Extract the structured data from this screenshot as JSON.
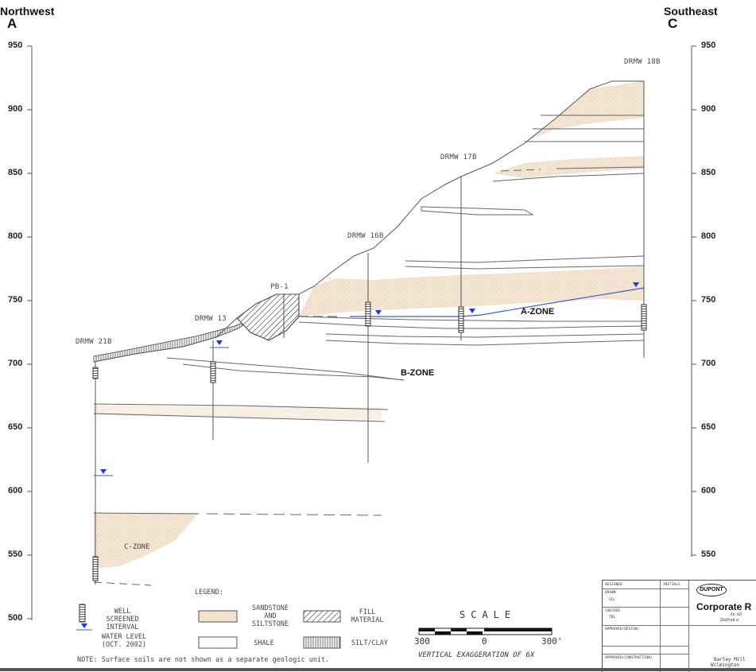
{
  "header": {
    "left_direction": "Northwest",
    "left_letter": "A",
    "right_direction": "Southeast",
    "right_letter": "C"
  },
  "left_ticks": [
    "950",
    "900",
    "850",
    "800",
    "750",
    "700",
    "650",
    "600",
    "550",
    "500"
  ],
  "right_ticks": [
    "950",
    "900",
    "850",
    "800",
    "750",
    "700",
    "650",
    "600",
    "550"
  ],
  "wells": [
    {
      "id": "DRMW 21B"
    },
    {
      "id": "DRMW 13"
    },
    {
      "id": "PB-1"
    },
    {
      "id": "DRMW 16B"
    },
    {
      "id": "DRMW 17B"
    },
    {
      "id": "DRMW 18B"
    }
  ],
  "zones": {
    "a": "A-ZONE",
    "b": "B-ZONE",
    "c": "C-ZONE"
  },
  "legend": {
    "title": "LEGEND:",
    "well_screen": "WELL\nSCREENED\nINTERVAL",
    "water_level": "WATER LEVEL\n(OCT. 2002)",
    "sandstone": "SANDSTONE\nAND\nSILTSTONE",
    "shale": "SHALE",
    "fill": "FILL\nMATERIAL",
    "siltclay": "SILT/CLAY",
    "note": "NOTE: Surface soils are not shown as a separate geologic unit."
  },
  "scale": {
    "title": "SCALE",
    "left": "300",
    "mid": "0",
    "right": "300'",
    "vex": "VERTICAL EXAGGERATION OF 6X"
  },
  "titleblock": {
    "designed": "DESIGNED",
    "initials": "INITIALS",
    "drawn": "DRAWN",
    "drawn_by": "SCL",
    "checked": "CHECKED",
    "checked_by": "TDL",
    "approved_design": "APPROVED(DESIGN)",
    "approved_construction": "APPROVED(CONSTRUCTION)",
    "logo": "DUPONT",
    "corp": "Corporate R",
    "sub1": "An All",
    "sub2": "DuPont a",
    "addr1": "Barley Mill",
    "addr2": "Wilmington"
  },
  "colors": {
    "sandstone": "#f3e4d2",
    "line": "#555555",
    "water": "#3a5ae0"
  }
}
